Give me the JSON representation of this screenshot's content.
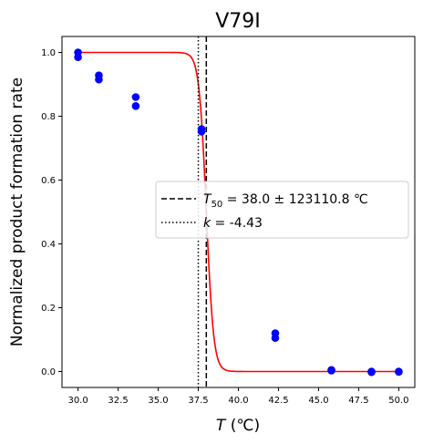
{
  "chart_data": {
    "type": "scatter",
    "title": "V79I",
    "xlabel": {
      "italic": "T",
      "rest": " (℃)"
    },
    "ylabel": "Normalized product formation rate",
    "xlim": [
      29.0,
      51.0
    ],
    "ylim": [
      -0.05,
      1.05
    ],
    "xticks": [
      30.0,
      32.5,
      35.0,
      37.5,
      40.0,
      42.5,
      45.0,
      47.5,
      50.0
    ],
    "xtick_labels": [
      "30.0",
      "32.5",
      "35.0",
      "37.5",
      "40.0",
      "42.5",
      "45.0",
      "47.5",
      "50.0"
    ],
    "yticks": [
      0.0,
      0.2,
      0.4,
      0.6,
      0.8,
      1.0
    ],
    "ytick_labels": [
      "0.0",
      "0.2",
      "0.4",
      "0.6",
      "0.8",
      "1.0"
    ],
    "grid": false,
    "legend_placement": "center-right",
    "points": {
      "color": "#0000ff",
      "x": [
        30.0,
        30.0,
        31.3,
        31.3,
        33.6,
        33.6,
        37.7,
        37.7,
        42.3,
        42.3,
        45.8,
        45.8,
        48.3,
        48.3,
        50.0,
        50.0
      ],
      "y": [
        1.0,
        0.985,
        0.928,
        0.915,
        0.86,
        0.832,
        0.76,
        0.752,
        0.12,
        0.105,
        0.005,
        0.003,
        0.0,
        -0.002,
        0.0,
        -0.001
      ]
    },
    "fit_curve": {
      "color": "#ff0000",
      "T50": 38.0,
      "k": -4.43,
      "top": 1.0,
      "x_range": [
        30.0,
        50.0
      ]
    },
    "vlines": [
      {
        "x": 38.0,
        "style": "dashed",
        "color": "#000000"
      },
      {
        "x": 37.5,
        "style": "dotted",
        "color": "#000000"
      }
    ],
    "legend": [
      {
        "style": "dashed",
        "math_symbol": "T",
        "math_sub": "50",
        "text": " = 38.0 ± 123110.8 ℃"
      },
      {
        "style": "dotted",
        "math_symbol": "k",
        "text": " = -4.43"
      }
    ]
  }
}
